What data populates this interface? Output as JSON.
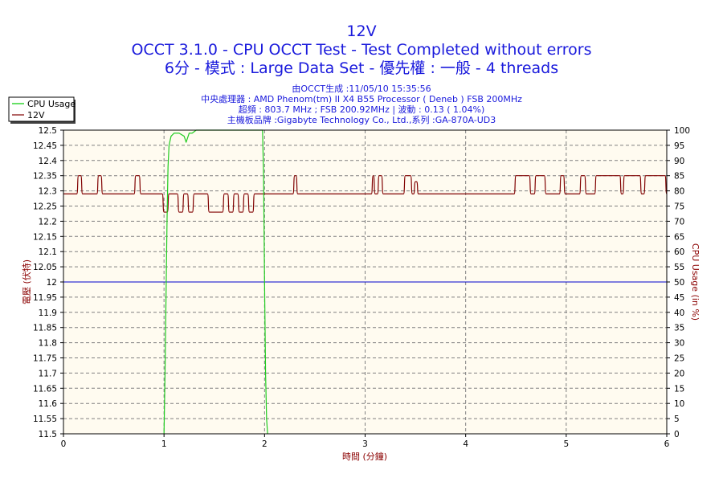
{
  "header": {
    "title": "12V",
    "subtitle1": "OCCT 3.1.0 - CPU OCCT Test - Test Completed without errors",
    "subtitle2": "6分 - 模式 : Large Data Set - 優先權 : 一般 - 4 threads",
    "info1": "由OCCT生成 :11/05/10 15:35:56",
    "info2": "中央處理器 : AMD Phenom(tm) II X4 B55 Processor ( Deneb ) FSB 200MHz",
    "info3": "超頻 : 803.7 MHz ; FSB 200.92MHz | 波動 : 0.13 ( 1.04%)",
    "info4": "主機板品牌 :Gigabyte Technology Co., Ltd.,系列 :GA-870A-UD3"
  },
  "legend": {
    "items": [
      {
        "label": "CPU Usage",
        "color": "#00cc00"
      },
      {
        "label": "12V",
        "color": "#800000"
      }
    ]
  },
  "colors": {
    "plot_bg": "#fffbf0",
    "grid": "#808080",
    "voltage": "#800000",
    "cpu": "#22cc22",
    "reference": "#0000cc",
    "title": "#1a1adc",
    "axis_title": "#8b0000"
  },
  "chart_data": {
    "type": "line",
    "title": "12V",
    "xlabel": "時間 (分鐘)",
    "ylabel_left": "電壓 (伏特)",
    "ylabel_right": "CPU Usage (in %)",
    "xlim": [
      0,
      6
    ],
    "ylim_left": [
      11.5,
      12.5
    ],
    "ylim_right": [
      0,
      100
    ],
    "grid": true,
    "legend_position": "top-left",
    "x_ticks": [
      "0",
      "1",
      "2",
      "3",
      "4",
      "5",
      "6"
    ],
    "y_left_ticks": [
      "12.5",
      "12.45",
      "12.4",
      "12.35",
      "12.3",
      "12.25",
      "12.2",
      "12.15",
      "12.1",
      "12.05",
      "12",
      "11.95",
      "11.9",
      "11.85",
      "11.8",
      "11.75",
      "11.7",
      "11.65",
      "11.6",
      "11.55",
      "11.5"
    ],
    "y_right_ticks": [
      "100",
      "95",
      "90",
      "85",
      "80",
      "75",
      "70",
      "65",
      "60",
      "55",
      "50",
      "45",
      "40",
      "35",
      "30",
      "25",
      "20",
      "15",
      "10",
      "5",
      "0"
    ],
    "reference_value": 12.0,
    "series": [
      {
        "name": "12V",
        "axis": "left",
        "step": true,
        "x": [
          0,
          0.15,
          0.19,
          0.35,
          0.39,
          0.72,
          0.77,
          1.0,
          1.05,
          1.15,
          1.2,
          1.25,
          1.3,
          1.45,
          1.6,
          1.65,
          1.7,
          1.75,
          1.8,
          1.85,
          1.9,
          2.3,
          2.33,
          3.08,
          3.1,
          3.14,
          3.18,
          3.4,
          3.47,
          3.5,
          3.53,
          4.5,
          4.65,
          4.7,
          4.8,
          4.95,
          4.99,
          5.15,
          5.2,
          5.3,
          5.55,
          5.58,
          5.75,
          5.79,
          6.0
        ],
        "values": [
          12.29,
          12.35,
          12.29,
          12.35,
          12.29,
          12.35,
          12.29,
          12.23,
          12.29,
          12.23,
          12.29,
          12.23,
          12.29,
          12.23,
          12.29,
          12.23,
          12.29,
          12.23,
          12.29,
          12.23,
          12.29,
          12.35,
          12.29,
          12.35,
          12.29,
          12.35,
          12.29,
          12.35,
          12.29,
          12.33,
          12.29,
          12.35,
          12.29,
          12.35,
          12.29,
          12.35,
          12.29,
          12.35,
          12.29,
          12.35,
          12.29,
          12.35,
          12.29,
          12.35,
          12.29
        ]
      },
      {
        "name": "CPU Usage",
        "axis": "right",
        "step": false,
        "x": [
          0.0,
          0.98,
          1.0,
          1.01,
          1.02,
          1.03,
          1.04,
          1.05,
          1.07,
          1.1,
          1.15,
          1.2,
          1.22,
          1.25,
          1.28,
          1.32,
          1.35,
          1.4,
          1.5,
          1.6,
          1.8,
          1.98,
          1.99,
          2.0,
          2.01,
          2.02,
          2.03
        ],
        "values": [
          null,
          null,
          0,
          20,
          45,
          70,
          88,
          95,
          98,
          99,
          99,
          98,
          96,
          99,
          99,
          100,
          100,
          100,
          100,
          100,
          100,
          100,
          85,
          50,
          20,
          5,
          0
        ]
      }
    ]
  }
}
